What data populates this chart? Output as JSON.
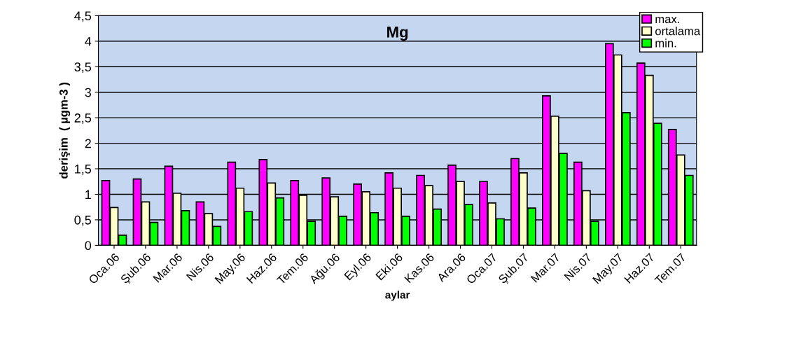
{
  "chart_data": {
    "type": "bar",
    "title": "Mg",
    "xlabel": "aylar",
    "ylabel": "derişim  ( µgm-3 )",
    "categories": [
      "Oca.06",
      "Şub.06",
      "Mar.06",
      "Nis.06",
      "May.06",
      "Haz.06",
      "Tem.06",
      "Ağu.06",
      "Eyl.06",
      "Eki.06",
      "Kas.06",
      "Ara.06",
      "Oca.07",
      "Şub.07",
      "Mar.07",
      "Nis.07",
      "May.07",
      "Haz.07",
      "Tem.07"
    ],
    "series": [
      {
        "name": "max.",
        "color": "#ff00ff",
        "values": [
          1.27,
          1.3,
          1.55,
          0.85,
          1.63,
          1.68,
          1.27,
          1.32,
          1.2,
          1.42,
          1.37,
          1.57,
          1.25,
          1.7,
          2.93,
          1.63,
          3.95,
          3.57,
          2.27
        ]
      },
      {
        "name": "ortalama",
        "color": "#ffffcc",
        "values": [
          0.74,
          0.85,
          1.02,
          0.62,
          1.12,
          1.22,
          0.98,
          0.95,
          1.05,
          1.12,
          1.17,
          1.25,
          0.83,
          1.42,
          2.53,
          1.07,
          3.73,
          3.33,
          1.77
        ]
      },
      {
        "name": "min.",
        "color": "#00ff00",
        "values": [
          0.2,
          0.45,
          0.68,
          0.37,
          0.66,
          0.93,
          0.47,
          0.57,
          0.64,
          0.57,
          0.71,
          0.8,
          0.52,
          0.73,
          1.8,
          0.47,
          2.6,
          2.39,
          1.37
        ]
      }
    ],
    "ylim": [
      0,
      4.5
    ],
    "yticks": [
      0,
      {
        "value": 0.5,
        "label": "0,5"
      },
      1,
      {
        "value": 1.5,
        "label": "1,5"
      },
      2,
      {
        "value": 2.5,
        "label": "2,5"
      },
      3,
      {
        "value": 3.5,
        "label": "3,5"
      },
      4,
      {
        "value": 4.5,
        "label": "4,5"
      }
    ],
    "grid": "y",
    "legend": "top right"
  }
}
